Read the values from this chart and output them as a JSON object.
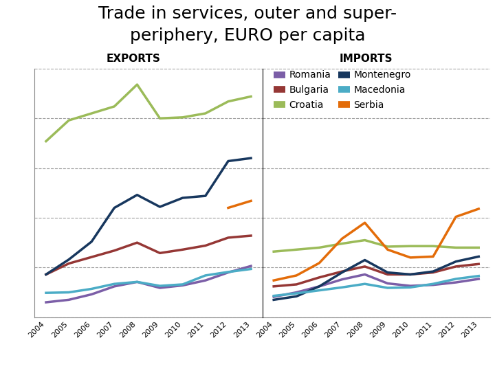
{
  "title_line1": "Trade in services, outer and super-",
  "title_line2": "periphery, EURO per capita",
  "years": [
    2004,
    2005,
    2006,
    2007,
    2008,
    2009,
    2010,
    2011,
    2012,
    2013
  ],
  "exports": {
    "Romania": [
      150,
      175,
      230,
      310,
      355,
      295,
      320,
      370,
      450,
      515
    ],
    "Bulgaria": [
      430,
      540,
      605,
      670,
      750,
      645,
      680,
      720,
      800,
      820
    ],
    "Croatia": [
      1770,
      1980,
      2050,
      2120,
      2340,
      2000,
      2010,
      2050,
      2170,
      2220
    ],
    "Montenegro": [
      430,
      580,
      760,
      1100,
      1230,
      1110,
      1200,
      1220,
      1570,
      1600
    ],
    "Macedonia": [
      245,
      250,
      285,
      335,
      355,
      315,
      330,
      420,
      455,
      485
    ],
    "Serbia": [
      null,
      null,
      null,
      null,
      null,
      null,
      null,
      null,
      1100,
      1170
    ]
  },
  "imports": {
    "Romania": [
      205,
      250,
      310,
      380,
      430,
      340,
      315,
      325,
      350,
      385
    ],
    "Bulgaria": [
      310,
      330,
      400,
      460,
      510,
      430,
      430,
      450,
      510,
      535
    ],
    "Croatia": [
      660,
      680,
      700,
      740,
      775,
      710,
      715,
      715,
      700,
      700
    ],
    "Montenegro": [
      175,
      210,
      310,
      450,
      575,
      450,
      430,
      460,
      560,
      610
    ],
    "Macedonia": [
      215,
      240,
      270,
      300,
      335,
      295,
      300,
      335,
      385,
      415
    ],
    "Serbia": [
      370,
      420,
      545,
      790,
      950,
      680,
      600,
      610,
      1010,
      1090
    ]
  },
  "colors": {
    "Romania": "#7b5ea7",
    "Bulgaria": "#953735",
    "Croatia": "#9bbb59",
    "Montenegro": "#17375e",
    "Macedonia": "#4bacc6",
    "Serbia": "#e36c09"
  },
  "ylim": [
    0,
    2500
  ],
  "yticks": [
    0,
    500,
    1000,
    1500,
    2000,
    2500
  ],
  "exports_label": "EXPORTS",
  "imports_label": "IMPORTS",
  "title_fontsize": 18,
  "label_fontsize": 11,
  "tick_fontsize": 8,
  "legend_fontsize": 10
}
